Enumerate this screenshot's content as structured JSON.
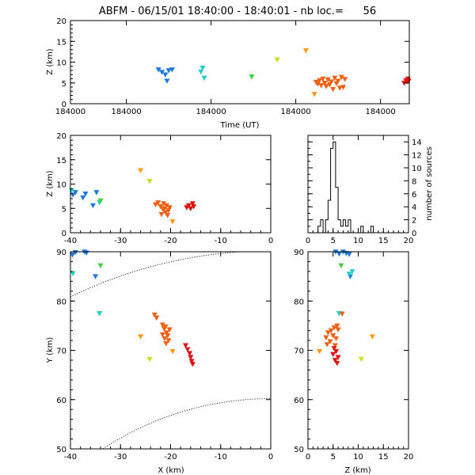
{
  "title": "ABFM - 06/15/01 18:40:00 - 18:40:01 - nb loc.=      56",
  "chart_data": [
    {
      "id": "time_height",
      "type": "scatter",
      "xlabel": "Time (UT)",
      "ylabel": "Z (km)",
      "xlim": [
        0,
        1
      ],
      "ylim": [
        0,
        20
      ],
      "xtick_labels": [
        "184000",
        "184000",
        "184000",
        "184000",
        "184000"
      ],
      "xtick_values": [
        0,
        0.165,
        0.415,
        0.665,
        0.915
      ],
      "yticks": [
        0,
        5,
        10,
        15,
        20
      ],
      "points": [
        {
          "x": 0.26,
          "y": 8.2,
          "c": "#1e78dc"
        },
        {
          "x": 0.27,
          "y": 7.6,
          "c": "#1e78dc"
        },
        {
          "x": 0.28,
          "y": 7.0,
          "c": "#1e78dc"
        },
        {
          "x": 0.285,
          "y": 5.5,
          "c": "#1e78dc"
        },
        {
          "x": 0.29,
          "y": 8.0,
          "c": "#1e78dc"
        },
        {
          "x": 0.3,
          "y": 8.2,
          "c": "#1e78dc"
        },
        {
          "x": 0.39,
          "y": 8.6,
          "c": "#20d0c8"
        },
        {
          "x": 0.385,
          "y": 7.7,
          "c": "#20d0c8"
        },
        {
          "x": 0.395,
          "y": 6.2,
          "c": "#20d0c8"
        },
        {
          "x": 0.535,
          "y": 6.5,
          "c": "#40d040"
        },
        {
          "x": 0.61,
          "y": 10.6,
          "c": "#c8e020"
        },
        {
          "x": 0.695,
          "y": 12.8,
          "c": "#ff9a10"
        },
        {
          "x": 0.72,
          "y": 2.3,
          "c": "#ff9a10"
        },
        {
          "x": 0.725,
          "y": 5.2,
          "c": "#f06010"
        },
        {
          "x": 0.73,
          "y": 4.8,
          "c": "#f06010"
        },
        {
          "x": 0.735,
          "y": 5.6,
          "c": "#f06010"
        },
        {
          "x": 0.74,
          "y": 4.4,
          "c": "#f06010"
        },
        {
          "x": 0.745,
          "y": 6.0,
          "c": "#f06010"
        },
        {
          "x": 0.75,
          "y": 5.0,
          "c": "#f06010"
        },
        {
          "x": 0.755,
          "y": 4.2,
          "c": "#f06010"
        },
        {
          "x": 0.76,
          "y": 5.8,
          "c": "#f06010"
        },
        {
          "x": 0.765,
          "y": 4.6,
          "c": "#f06010"
        },
        {
          "x": 0.77,
          "y": 5.3,
          "c": "#f06010"
        },
        {
          "x": 0.775,
          "y": 3.5,
          "c": "#f06010"
        },
        {
          "x": 0.78,
          "y": 6.2,
          "c": "#f06010"
        },
        {
          "x": 0.785,
          "y": 4.9,
          "c": "#f06010"
        },
        {
          "x": 0.79,
          "y": 5.5,
          "c": "#f06010"
        },
        {
          "x": 0.795,
          "y": 3.8,
          "c": "#f06010"
        },
        {
          "x": 0.8,
          "y": 6.4,
          "c": "#f06010"
        },
        {
          "x": 0.805,
          "y": 4.0,
          "c": "#f06010"
        },
        {
          "x": 0.81,
          "y": 5.9,
          "c": "#f06010"
        },
        {
          "x": 0.985,
          "y": 5.0,
          "c": "#e01010"
        },
        {
          "x": 0.99,
          "y": 5.6,
          "c": "#e01010"
        },
        {
          "x": 0.993,
          "y": 5.3,
          "c": "#e01010"
        },
        {
          "x": 0.996,
          "y": 6.0,
          "c": "#e01010"
        },
        {
          "x": 0.998,
          "y": 5.5,
          "c": "#e01010"
        }
      ]
    },
    {
      "id": "x_height",
      "type": "scatter",
      "xlabel": "",
      "ylabel": "Z (km)",
      "xlim": [
        -40,
        0
      ],
      "ylim": [
        0,
        20
      ],
      "xticks": [
        -40,
        -30,
        -20,
        -10,
        0
      ],
      "yticks": [
        0,
        5,
        10,
        15,
        20
      ],
      "points": [
        {
          "x": -39.5,
          "y": 7.8,
          "c": "#1e78dc"
        },
        {
          "x": -39.0,
          "y": 8.3,
          "c": "#1e78dc"
        },
        {
          "x": -37.5,
          "y": 7.2,
          "c": "#1e78dc"
        },
        {
          "x": -37.0,
          "y": 8.0,
          "c": "#1e78dc"
        },
        {
          "x": -34.8,
          "y": 8.3,
          "c": "#1e78dc"
        },
        {
          "x": -35.5,
          "y": 5.6,
          "c": "#1e78dc"
        },
        {
          "x": -39.8,
          "y": 8.7,
          "c": "#20d0c8"
        },
        {
          "x": -34.2,
          "y": 6.2,
          "c": "#20d0c8"
        },
        {
          "x": -34.0,
          "y": 6.6,
          "c": "#40d040"
        },
        {
          "x": -24.2,
          "y": 10.6,
          "c": "#c8e020"
        },
        {
          "x": -26.0,
          "y": 12.8,
          "c": "#ff9a10"
        },
        {
          "x": -19.6,
          "y": 2.3,
          "c": "#ff9a10"
        },
        {
          "x": -23.0,
          "y": 5.8,
          "c": "#f06010"
        },
        {
          "x": -22.5,
          "y": 6.2,
          "c": "#f06010"
        },
        {
          "x": -22.0,
          "y": 5.4,
          "c": "#f06010"
        },
        {
          "x": -21.5,
          "y": 4.8,
          "c": "#f06010"
        },
        {
          "x": -21.2,
          "y": 5.0,
          "c": "#f06010"
        },
        {
          "x": -21.0,
          "y": 4.2,
          "c": "#f06010"
        },
        {
          "x": -20.8,
          "y": 5.6,
          "c": "#f06010"
        },
        {
          "x": -20.6,
          "y": 3.6,
          "c": "#f06010"
        },
        {
          "x": -20.4,
          "y": 4.6,
          "c": "#f06010"
        },
        {
          "x": -21.8,
          "y": 3.8,
          "c": "#f06010"
        },
        {
          "x": -20.2,
          "y": 5.2,
          "c": "#f06010"
        },
        {
          "x": -21.4,
          "y": 6.0,
          "c": "#f06010"
        },
        {
          "x": -16.8,
          "y": 5.2,
          "c": "#e01010"
        },
        {
          "x": -16.4,
          "y": 5.6,
          "c": "#e01010"
        },
        {
          "x": -16.0,
          "y": 5.0,
          "c": "#e01010"
        },
        {
          "x": -15.6,
          "y": 6.0,
          "c": "#e01010"
        },
        {
          "x": -15.4,
          "y": 5.4,
          "c": "#e01010"
        }
      ]
    },
    {
      "id": "height_histogram",
      "type": "histogram",
      "xlabel": "",
      "ylabel": "number of sources",
      "xlim": [
        0,
        20
      ],
      "ylim": [
        0,
        15
      ],
      "xticks": [
        0,
        5,
        10,
        15,
        20
      ],
      "yticks": [
        0,
        2,
        4,
        6,
        8,
        10,
        12,
        14
      ],
      "bin_width": 0.5,
      "bins": [
        {
          "x0": 0,
          "count": 0
        },
        {
          "x0": 0.5,
          "count": 0
        },
        {
          "x0": 1,
          "count": 0
        },
        {
          "x0": 1.5,
          "count": 0
        },
        {
          "x0": 2,
          "count": 1
        },
        {
          "x0": 2.5,
          "count": 2
        },
        {
          "x0": 3,
          "count": 0
        },
        {
          "x0": 3.5,
          "count": 2
        },
        {
          "x0": 4,
          "count": 5
        },
        {
          "x0": 4.5,
          "count": 13
        },
        {
          "x0": 5,
          "count": 14
        },
        {
          "x0": 5.5,
          "count": 7
        },
        {
          "x0": 6,
          "count": 2
        },
        {
          "x0": 6.5,
          "count": 1
        },
        {
          "x0": 7,
          "count": 2
        },
        {
          "x0": 7.5,
          "count": 1
        },
        {
          "x0": 8,
          "count": 2
        },
        {
          "x0": 8.5,
          "count": 0
        },
        {
          "x0": 9,
          "count": 0
        },
        {
          "x0": 9.5,
          "count": 0
        },
        {
          "x0": 10,
          "count": 0
        },
        {
          "x0": 10.5,
          "count": 1
        },
        {
          "x0": 11,
          "count": 0
        },
        {
          "x0": 11.5,
          "count": 0
        },
        {
          "x0": 12,
          "count": 0
        },
        {
          "x0": 12.5,
          "count": 1
        },
        {
          "x0": 13,
          "count": 0
        }
      ]
    },
    {
      "id": "plan_view",
      "type": "scatter",
      "xlabel": "X (km)",
      "ylabel": "Y (km)",
      "xlim": [
        -40,
        0
      ],
      "ylim": [
        50,
        90
      ],
      "xticks": [
        -40,
        -30,
        -20,
        -10,
        0
      ],
      "yticks": [
        50,
        60,
        70,
        80,
        90
      ],
      "range_rings": [
        {
          "cx": 0,
          "cy": 0,
          "r": 90.2
        },
        {
          "cx": 0,
          "cy": 0,
          "r": 60.2
        }
      ],
      "points": [
        {
          "x": -39.6,
          "y": 89.4,
          "c": "#1e78dc"
        },
        {
          "x": -39.0,
          "y": 89.9,
          "c": "#1e78dc"
        },
        {
          "x": -37.2,
          "y": 90.0,
          "c": "#1e78dc"
        },
        {
          "x": -36.8,
          "y": 89.8,
          "c": "#1e78dc"
        },
        {
          "x": -35.0,
          "y": 85.0,
          "c": "#1e78dc"
        },
        {
          "x": -39.5,
          "y": 85.6,
          "c": "#20d0c8"
        },
        {
          "x": -34.2,
          "y": 77.5,
          "c": "#20d0c8"
        },
        {
          "x": -34.0,
          "y": 87.2,
          "c": "#40d040"
        },
        {
          "x": -24.2,
          "y": 68.2,
          "c": "#c8e020"
        },
        {
          "x": -26.0,
          "y": 72.8,
          "c": "#ff9a10"
        },
        {
          "x": -19.6,
          "y": 69.8,
          "c": "#ff9a10"
        },
        {
          "x": -23.2,
          "y": 77.2,
          "c": "#f06010"
        },
        {
          "x": -22.8,
          "y": 76.6,
          "c": "#f06010"
        },
        {
          "x": -21.6,
          "y": 75.2,
          "c": "#f06010"
        },
        {
          "x": -21.3,
          "y": 74.4,
          "c": "#f06010"
        },
        {
          "x": -21.0,
          "y": 74.8,
          "c": "#f06010"
        },
        {
          "x": -20.8,
          "y": 73.6,
          "c": "#f06010"
        },
        {
          "x": -20.6,
          "y": 73.0,
          "c": "#f06010"
        },
        {
          "x": -21.2,
          "y": 72.4,
          "c": "#f06010"
        },
        {
          "x": -20.4,
          "y": 72.0,
          "c": "#f06010"
        },
        {
          "x": -20.9,
          "y": 71.4,
          "c": "#f06010"
        },
        {
          "x": -20.2,
          "y": 74.2,
          "c": "#f06010"
        },
        {
          "x": -21.6,
          "y": 73.2,
          "c": "#f06010"
        },
        {
          "x": -17.0,
          "y": 71.0,
          "c": "#e01010"
        },
        {
          "x": -16.6,
          "y": 70.2,
          "c": "#e01010"
        },
        {
          "x": -16.2,
          "y": 69.4,
          "c": "#e01010"
        },
        {
          "x": -16.0,
          "y": 68.6,
          "c": "#e01010"
        },
        {
          "x": -15.8,
          "y": 67.8,
          "c": "#e01010"
        },
        {
          "x": -15.6,
          "y": 67.2,
          "c": "#e01010"
        }
      ]
    },
    {
      "id": "z_y",
      "type": "scatter",
      "xlabel": "Z (km)",
      "ylabel": "",
      "xlim": [
        0,
        20
      ],
      "ylim": [
        50,
        90
      ],
      "xticks": [
        0,
        5,
        10,
        15,
        20
      ],
      "yticks": [
        50,
        60,
        70,
        80,
        90
      ],
      "points": [
        {
          "x": 5.5,
          "y": 90.0,
          "c": "#1e78dc"
        },
        {
          "x": 6.2,
          "y": 89.6,
          "c": "#1e78dc"
        },
        {
          "x": 7.0,
          "y": 90.0,
          "c": "#1e78dc"
        },
        {
          "x": 7.6,
          "y": 89.7,
          "c": "#1e78dc"
        },
        {
          "x": 8.2,
          "y": 89.5,
          "c": "#1e78dc"
        },
        {
          "x": 8.4,
          "y": 85.0,
          "c": "#1e78dc"
        },
        {
          "x": 8.8,
          "y": 86.0,
          "c": "#20d0c8"
        },
        {
          "x": 8.2,
          "y": 85.5,
          "c": "#20d0c8"
        },
        {
          "x": 6.2,
          "y": 77.5,
          "c": "#20d0c8"
        },
        {
          "x": 6.6,
          "y": 87.2,
          "c": "#40d040"
        },
        {
          "x": 10.6,
          "y": 68.2,
          "c": "#c8e020"
        },
        {
          "x": 12.8,
          "y": 72.8,
          "c": "#ff9a10"
        },
        {
          "x": 2.3,
          "y": 69.8,
          "c": "#ff9a10"
        },
        {
          "x": 6.8,
          "y": 77.4,
          "c": "#f06010"
        },
        {
          "x": 5.8,
          "y": 75.0,
          "c": "#f06010"
        },
        {
          "x": 5.2,
          "y": 74.6,
          "c": "#f06010"
        },
        {
          "x": 4.6,
          "y": 74.0,
          "c": "#f06010"
        },
        {
          "x": 4.0,
          "y": 73.6,
          "c": "#f06010"
        },
        {
          "x": 5.0,
          "y": 73.0,
          "c": "#f06010"
        },
        {
          "x": 5.6,
          "y": 72.4,
          "c": "#f06010"
        },
        {
          "x": 3.6,
          "y": 72.6,
          "c": "#f06010"
        },
        {
          "x": 4.4,
          "y": 71.8,
          "c": "#f06010"
        },
        {
          "x": 6.0,
          "y": 74.2,
          "c": "#f06010"
        },
        {
          "x": 3.8,
          "y": 71.2,
          "c": "#f06010"
        },
        {
          "x": 5.4,
          "y": 71.0,
          "c": "#f06010"
        },
        {
          "x": 5.2,
          "y": 70.4,
          "c": "#e01010"
        },
        {
          "x": 5.6,
          "y": 69.8,
          "c": "#e01010"
        },
        {
          "x": 5.0,
          "y": 69.2,
          "c": "#e01010"
        },
        {
          "x": 6.0,
          "y": 68.6,
          "c": "#e01010"
        },
        {
          "x": 5.4,
          "y": 68.0,
          "c": "#e01010"
        },
        {
          "x": 5.8,
          "y": 67.4,
          "c": "#e01010"
        }
      ]
    }
  ]
}
